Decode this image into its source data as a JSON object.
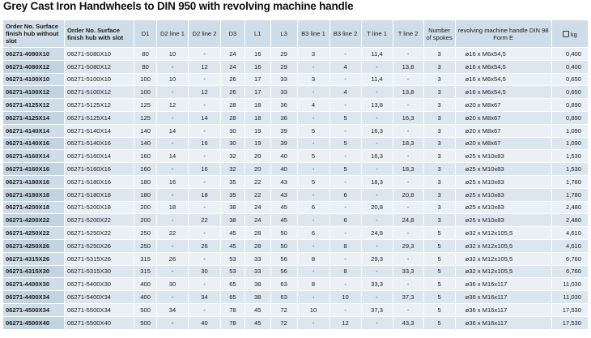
{
  "title": "Grey Cast Iron Handwheels to DIN 950 with revolving machine handle",
  "headers": {
    "order_no_without_slot": "Order No. Surface finish hub without slot",
    "order_no_with_slot": "Order No. Surface finish hub with slot",
    "d1": "D1",
    "d2_line1": "D2 line 1",
    "d2_line2": "D2 line 2",
    "d3": "D3",
    "l1": "L1",
    "l3": "L3",
    "b3_line1": "B3 line 1",
    "b3_line2": "B3 line 2",
    "t_line1": "T line 1",
    "t_line2": "T line 2",
    "spokes": "Number of spokes",
    "handle": "revolving machine handle DIN 98 Form E",
    "kg": "kg",
    "kg_icon": "weight-icon"
  },
  "rows": [
    {
      "o1": "06271-4080X10",
      "o2": "06271-5080X10",
      "d1": "80",
      "d2a": "10",
      "d2b": "-",
      "d3": "24",
      "l1": "16",
      "l3": "29",
      "b3a": "3",
      "b3b": "-",
      "ta": "11,4",
      "tb": "-",
      "sp": "3",
      "h": "ø16 x M6x54,5",
      "kg": "0,400"
    },
    {
      "o1": "06271-4080X12",
      "o2": "06271-5080X12",
      "d1": "80",
      "d2a": "-",
      "d2b": "12",
      "d3": "24",
      "l1": "16",
      "l3": "29",
      "b3a": "-",
      "b3b": "4",
      "ta": "-",
      "tb": "13,8",
      "sp": "3",
      "h": "ø16 x M6x54,5",
      "kg": "0,400"
    },
    {
      "o1": "06271-4100X10",
      "o2": "06271-5100X10",
      "d1": "100",
      "d2a": "10",
      "d2b": "-",
      "d3": "26",
      "l1": "17",
      "l3": "33",
      "b3a": "3",
      "b3b": "-",
      "ta": "11,4",
      "tb": "-",
      "sp": "3",
      "h": "ø16 x M6x54,5",
      "kg": "0,650"
    },
    {
      "o1": "06271-4100X12",
      "o2": "06271-5100X12",
      "d1": "100",
      "d2a": "-",
      "d2b": "12",
      "d3": "26",
      "l1": "17",
      "l3": "33",
      "b3a": "-",
      "b3b": "4",
      "ta": "-",
      "tb": "13,8",
      "sp": "3",
      "h": "ø16 x M6x54,5",
      "kg": "0,650"
    },
    {
      "o1": "06271-4125X12",
      "o2": "06271-5125X12",
      "d1": "125",
      "d2a": "12",
      "d2b": "-",
      "d3": "28",
      "l1": "18",
      "l3": "36",
      "b3a": "4",
      "b3b": "-",
      "ta": "13,8",
      "tb": "-",
      "sp": "3",
      "h": "ø20 x M8x67",
      "kg": "0,890"
    },
    {
      "o1": "06271-4125X14",
      "o2": "06271-5125X14",
      "d1": "125",
      "d2a": "-",
      "d2b": "14",
      "d3": "28",
      "l1": "18",
      "l3": "36",
      "b3a": "-",
      "b3b": "5",
      "ta": "-",
      "tb": "16,3",
      "sp": "3",
      "h": "ø20 x M8x67",
      "kg": "0,890"
    },
    {
      "o1": "06271-4140X14",
      "o2": "06271-5140X14",
      "d1": "140",
      "d2a": "14",
      "d2b": "-",
      "d3": "30",
      "l1": "19",
      "l3": "39",
      "b3a": "5",
      "b3b": "-",
      "ta": "16,3",
      "tb": "-",
      "sp": "3",
      "h": "ø20 x M8x67",
      "kg": "1,090"
    },
    {
      "o1": "06271-4140X16",
      "o2": "06271-5140X16",
      "d1": "140",
      "d2a": "-",
      "d2b": "16",
      "d3": "30",
      "l1": "19",
      "l3": "39",
      "b3a": "-",
      "b3b": "5",
      "ta": "-",
      "tb": "18,3",
      "sp": "3",
      "h": "ø20 x M8x67",
      "kg": "1,090"
    },
    {
      "o1": "06271-4160X14",
      "o2": "06271-5160X14",
      "d1": "160",
      "d2a": "14",
      "d2b": "-",
      "d3": "32",
      "l1": "20",
      "l3": "40",
      "b3a": "5",
      "b3b": "-",
      "ta": "16,3",
      "tb": "-",
      "sp": "3",
      "h": "ø25 x M10x83",
      "kg": "1,530"
    },
    {
      "o1": "06271-4160X16",
      "o2": "06271-5160X16",
      "d1": "160",
      "d2a": "-",
      "d2b": "16",
      "d3": "32",
      "l1": "20",
      "l3": "40",
      "b3a": "-",
      "b3b": "5",
      "ta": "-",
      "tb": "18,3",
      "sp": "3",
      "h": "ø25 x M10x83",
      "kg": "1,530"
    },
    {
      "o1": "06271-4180X16",
      "o2": "06271-5180X16",
      "d1": "180",
      "d2a": "16",
      "d2b": "-",
      "d3": "35",
      "l1": "22",
      "l3": "43",
      "b3a": "5",
      "b3b": "-",
      "ta": "18,3",
      "tb": "-",
      "sp": "3",
      "h": "ø25 x M10x83",
      "kg": "1,780"
    },
    {
      "o1": "06271-4180X18",
      "o2": "06271-5180X18",
      "d1": "180",
      "d2a": "-",
      "d2b": "18",
      "d3": "35",
      "l1": "22",
      "l3": "43",
      "b3a": "-",
      "b3b": "6",
      "ta": "-",
      "tb": "20,8",
      "sp": "3",
      "h": "ø25 x M10x83",
      "kg": "1,780"
    },
    {
      "o1": "06271-4200X18",
      "o2": "06271-5200X18",
      "d1": "200",
      "d2a": "18",
      "d2b": "-",
      "d3": "38",
      "l1": "24",
      "l3": "45",
      "b3a": "6",
      "b3b": "-",
      "ta": "20,8",
      "tb": "-",
      "sp": "3",
      "h": "ø25 x M10x83",
      "kg": "2,480"
    },
    {
      "o1": "06271-4200X22",
      "o2": "06271-5200X22",
      "d1": "200",
      "d2a": "-",
      "d2b": "22",
      "d3": "38",
      "l1": "24",
      "l3": "45",
      "b3a": "-",
      "b3b": "6",
      "ta": "-",
      "tb": "24,8",
      "sp": "3",
      "h": "ø25 x M10x83",
      "kg": "2,480"
    },
    {
      "o1": "06271-4250X22",
      "o2": "06271-5250X22",
      "d1": "250",
      "d2a": "22",
      "d2b": "-",
      "d3": "45",
      "l1": "28",
      "l3": "50",
      "b3a": "6",
      "b3b": "-",
      "ta": "24,8",
      "tb": "-",
      "sp": "5",
      "h": "ø32 x M12x105,5",
      "kg": "4,610"
    },
    {
      "o1": "06271-4250X26",
      "o2": "06271-5250X26",
      "d1": "250",
      "d2a": "-",
      "d2b": "26",
      "d3": "45",
      "l1": "28",
      "l3": "50",
      "b3a": "-",
      "b3b": "8",
      "ta": "-",
      "tb": "29,3",
      "sp": "5",
      "h": "ø32 x M12x105,5",
      "kg": "4,610"
    },
    {
      "o1": "06271-4315X26",
      "o2": "06271-5315X26",
      "d1": "315",
      "d2a": "26",
      "d2b": "-",
      "d3": "53",
      "l1": "33",
      "l3": "56",
      "b3a": "8",
      "b3b": "-",
      "ta": "29,3",
      "tb": "-",
      "sp": "5",
      "h": "ø32 x M12x105,5",
      "kg": "6,760"
    },
    {
      "o1": "06271-4315X30",
      "o2": "06271-5315X30",
      "d1": "315",
      "d2a": "-",
      "d2b": "30",
      "d3": "53",
      "l1": "33",
      "l3": "56",
      "b3a": "-",
      "b3b": "8",
      "ta": "-",
      "tb": "33,3",
      "sp": "5",
      "h": "ø32 x M12x105,5",
      "kg": "6,760"
    },
    {
      "o1": "06271-4400X30",
      "o2": "06271-5400X30",
      "d1": "400",
      "d2a": "30",
      "d2b": "-",
      "d3": "65",
      "l1": "38",
      "l3": "63",
      "b3a": "8",
      "b3b": "-",
      "ta": "33,3",
      "tb": "-",
      "sp": "5",
      "h": "ø36 x M16x117",
      "kg": "11,030"
    },
    {
      "o1": "06271-4400X34",
      "o2": "06271-5400X34",
      "d1": "400",
      "d2a": "-",
      "d2b": "34",
      "d3": "65",
      "l1": "38",
      "l3": "63",
      "b3a": "-",
      "b3b": "10",
      "ta": "-",
      "tb": "37,3",
      "sp": "5",
      "h": "ø36 x M16x117",
      "kg": "11,030"
    },
    {
      "o1": "06271-4500X34",
      "o2": "06271-5500X34",
      "d1": "500",
      "d2a": "34",
      "d2b": "-",
      "d3": "78",
      "l1": "45",
      "l3": "72",
      "b3a": "10",
      "b3b": "-",
      "ta": "37,3",
      "tb": "-",
      "sp": "5",
      "h": "ø36 x M16x117",
      "kg": "17,530"
    },
    {
      "o1": "06271-4500X40",
      "o2": "06271-5500X40",
      "d1": "500",
      "d2a": "-",
      "d2b": "40",
      "d3": "78",
      "l1": "45",
      "l3": "72",
      "b3a": "-",
      "b3b": "12",
      "ta": "-",
      "tb": "43,3",
      "sp": "5",
      "h": "ø36 x M16x117",
      "kg": "17,530"
    }
  ]
}
